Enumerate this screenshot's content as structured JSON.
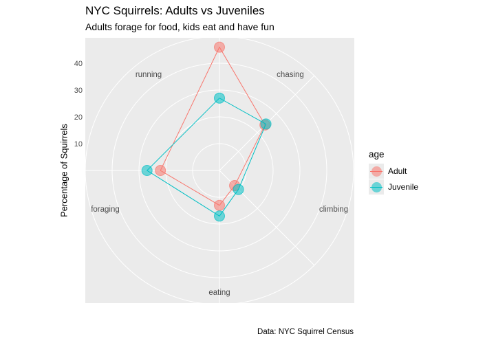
{
  "title": "NYC Squirrels: Adults vs Juveniles",
  "subtitle": "Adults forage for food, kids eat and have fun",
  "caption": "Data: NYC Squirrel Census",
  "chart_data": {
    "type": "radar",
    "title": "NYC Squirrels: Adults vs Juveniles",
    "subtitle": "Adults forage for food, kids eat and have fun",
    "ylabel": "Percentage of Squirrels",
    "categories": [
      "running",
      "chasing",
      "climbing",
      "eating",
      "foraging"
    ],
    "y_ticks": [
      10,
      20,
      30,
      40
    ],
    "rlim": [
      0,
      50
    ],
    "grid": true,
    "legend_title": "age",
    "legend_position": "right",
    "series": [
      {
        "name": "Adult",
        "color": "#F8766D",
        "values": [
          24,
          8,
          13,
          22,
          46
        ]
      },
      {
        "name": "Juvenile",
        "color": "#00BFC4",
        "values": [
          24.5,
          10,
          17,
          27,
          27
        ]
      }
    ]
  },
  "legend": {
    "title": "age",
    "items": [
      {
        "label": "Adult",
        "color": "#F8766D"
      },
      {
        "label": "Juvenile",
        "color": "#00BFC4"
      }
    ]
  }
}
